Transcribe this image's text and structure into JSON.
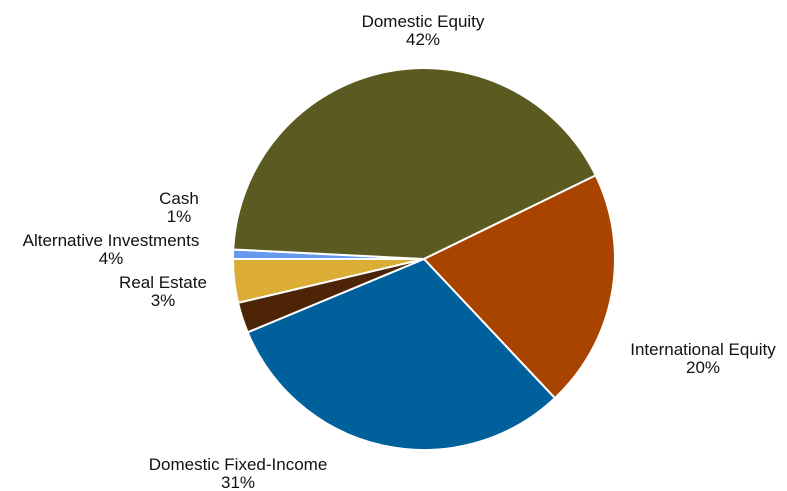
{
  "chart_data": {
    "type": "pie",
    "title": "",
    "start_angle_deg": 180,
    "direction": "clockwise",
    "slices": [
      {
        "label": "Cash",
        "value_label": "1%",
        "value": 0.8,
        "color": "#6699ee"
      },
      {
        "label": "Domestic Equity",
        "value_label": "42%",
        "value": 42.2,
        "color": "#5b5a20"
      },
      {
        "label": "International Equity",
        "value_label": "20%",
        "value": 20.3,
        "color": "#a94400"
      },
      {
        "label": "Domestic Fixed-Income",
        "value_label": "31%",
        "value": 30.9,
        "color": "#00609b"
      },
      {
        "label": "Real Estate",
        "value_label": "3%",
        "value": 2.6,
        "color": "#4d2506"
      },
      {
        "label": "Alternative Investments",
        "value_label": "4%",
        "value": 3.7,
        "color": "#dbad34"
      }
    ],
    "legend": "none",
    "label_style": "outside, two lines (name over percent)"
  }
}
